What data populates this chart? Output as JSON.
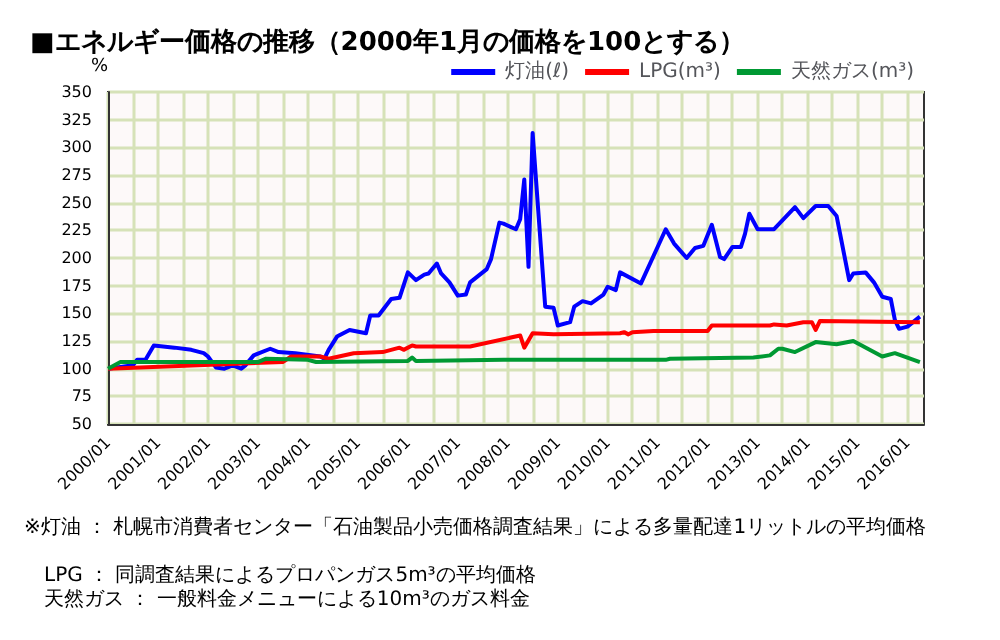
{
  "chart_data": {
    "type": "line",
    "title": "■エネルギー価格の推移（2000年1月の価格を100とする）",
    "ylabel": "%",
    "xlim": [
      "2000-01",
      "2016-05"
    ],
    "xticks": [
      {
        "value": "2000-01",
        "label": "2000/01"
      },
      {
        "value": "2000-07",
        "label": null
      },
      {
        "value": "2001-01",
        "label": "2001/01"
      },
      {
        "value": "2001-07",
        "label": null
      },
      {
        "value": "2002-01",
        "label": "2002/01"
      },
      {
        "value": "2002-07",
        "label": null
      },
      {
        "value": "2003-01",
        "label": "2003/01"
      },
      {
        "value": "2003-07",
        "label": null
      },
      {
        "value": "2004-01",
        "label": "2004/01"
      },
      {
        "value": "2004-07",
        "label": null
      },
      {
        "value": "2005-01",
        "label": "2005/01"
      },
      {
        "value": "2005-07",
        "label": null
      },
      {
        "value": "2006-01",
        "label": "2006/01"
      },
      {
        "value": "2006-07",
        "label": null
      },
      {
        "value": "2007-01",
        "label": "2007/01"
      },
      {
        "value": "2007-07",
        "label": null
      },
      {
        "value": "2008-01",
        "label": "2008/01"
      },
      {
        "value": "2008-07",
        "label": null
      },
      {
        "value": "2009-01",
        "label": "2009/01"
      },
      {
        "value": "2009-07",
        "label": null
      },
      {
        "value": "2010-01",
        "label": "2010/01"
      },
      {
        "value": "2010-07",
        "label": null
      },
      {
        "value": "2011-01",
        "label": "2011/01"
      },
      {
        "value": "2011-07",
        "label": null
      },
      {
        "value": "2012-01",
        "label": "2012/01"
      },
      {
        "value": "2012-07",
        "label": null
      },
      {
        "value": "2013-01",
        "label": "2013/01"
      },
      {
        "value": "2013-07",
        "label": null
      },
      {
        "value": "2014-01",
        "label": "2014/01"
      },
      {
        "value": "2014-07",
        "label": null
      },
      {
        "value": "2015-01",
        "label": "2015/01"
      },
      {
        "value": "2015-07",
        "label": null
      },
      {
        "value": "2016-01",
        "label": "2016/01"
      }
    ],
    "ylim": [
      50,
      350
    ],
    "yticks": [
      50,
      75,
      100,
      125,
      150,
      175,
      200,
      225,
      250,
      275,
      300,
      325,
      350
    ],
    "grid": true,
    "legend": "top right",
    "marker": "none",
    "line_style": "solid",
    "series": [
      {
        "name": "灯油(ℓ)",
        "color": "#0000ff",
        "x": [
          "2000-01",
          "2000-07",
          "2000-08",
          "2000-10",
          "2000-12",
          "2001-05",
          "2001-09",
          "2001-12",
          "2002-01",
          "2002-03",
          "2002-05",
          "2002-07",
          "2002-09",
          "2002-10",
          "2002-12",
          "2003-04",
          "2003-06",
          "2003-10",
          "2004-04",
          "2004-05",
          "2004-06",
          "2004-08",
          "2004-11",
          "2005-03",
          "2005-04",
          "2005-06",
          "2005-09",
          "2005-11",
          "2006-01",
          "2006-03",
          "2006-05",
          "2006-06",
          "2006-08",
          "2006-09",
          "2006-11",
          "2007-01",
          "2007-03",
          "2007-04",
          "2007-08",
          "2007-09",
          "2007-11",
          "2007-12",
          "2008-03",
          "2008-04",
          "2008-05",
          "2008-06",
          "2008-07",
          "2008-10",
          "2008-12",
          "2009-01",
          "2009-04",
          "2009-05",
          "2009-07",
          "2009-09",
          "2009-12",
          "2010-01",
          "2010-03",
          "2010-04",
          "2010-09",
          "2011-03",
          "2011-05",
          "2011-08",
          "2011-10",
          "2011-12",
          "2012-02",
          "2012-04",
          "2012-05",
          "2012-07",
          "2012-09",
          "2012-10",
          "2012-11",
          "2013-01",
          "2013-05",
          "2013-10",
          "2013-12",
          "2014-03",
          "2014-06",
          "2014-08",
          "2014-11",
          "2014-12",
          "2015-03",
          "2015-05",
          "2015-07",
          "2015-09",
          "2015-10",
          "2015-11",
          "2016-01",
          "2016-04"
        ],
        "values": [
          100,
          103,
          108,
          108,
          121,
          119,
          117,
          114,
          111,
          101,
          100,
          103,
          100,
          103,
          112,
          118,
          115,
          114,
          111,
          109,
          117,
          129,
          135,
          132,
          148,
          148,
          163,
          164,
          187,
          180,
          185,
          186,
          195,
          186,
          178,
          166,
          167,
          178,
          190,
          199,
          232,
          231,
          226,
          235,
          271,
          192,
          313,
          156,
          155,
          139,
          142,
          156,
          161,
          159,
          167,
          174,
          171,
          187,
          177,
          226,
          213,
          200,
          209,
          211,
          230,
          201,
          199,
          210,
          210,
          222,
          240,
          226,
          226,
          246,
          236,
          247,
          247,
          238,
          180,
          186,
          187,
          178,
          165,
          163,
          144,
          136,
          138,
          147
        ]
      },
      {
        "name": "LPG(m³)",
        "color": "#ff0000",
        "x": [
          "2000-01",
          "2003-07",
          "2003-09",
          "2004-04",
          "2004-06",
          "2004-12",
          "2005-07",
          "2005-11",
          "2005-12",
          "2006-02",
          "2006-03",
          "2007-04",
          "2008-04",
          "2008-05",
          "2008-07",
          "2008-12",
          "2010-04",
          "2010-05",
          "2010-06",
          "2010-07",
          "2010-12",
          "2012-01",
          "2012-02",
          "2013-04",
          "2013-05",
          "2013-08",
          "2013-12",
          "2014-02",
          "2014-03",
          "2014-04",
          "2016-04"
        ],
        "values": [
          100,
          106,
          111,
          111,
          109,
          114,
          115,
          119,
          117,
          121,
          120,
          120,
          130,
          119,
          132,
          131,
          132,
          133,
          131,
          133,
          134,
          134,
          139,
          139,
          140,
          139,
          142,
          142,
          135,
          143,
          142
        ]
      },
      {
        "name": "天然ガス(m³)",
        "color": "#009933",
        "x": [
          "2000-01",
          "2000-04",
          "2003-01",
          "2003-03",
          "2004-01",
          "2004-03",
          "2006-01",
          "2006-02",
          "2006-03",
          "2007-12",
          "2011-03",
          "2011-04",
          "2012-12",
          "2013-04",
          "2013-06",
          "2013-07",
          "2013-10",
          "2014-03",
          "2014-08",
          "2014-12",
          "2015-07",
          "2015-10",
          "2016-04"
        ],
        "values": [
          100,
          106,
          106,
          109,
          108,
          106,
          107,
          110,
          107,
          108,
          108,
          109,
          110,
          112,
          118,
          118,
          115,
          124,
          122,
          125,
          111,
          114,
          106
        ]
      }
    ],
    "annotations": [
      "※灯油 ： 札幌市消費者センター「石油製品小売価格調査結果」による多量配達1リットルの平均価格",
      "LPG ： 同調査結果によるプロパンガス5m³の平均価格",
      "天然ガス ： 一般料金メニューによる10m³のガス料金"
    ]
  }
}
